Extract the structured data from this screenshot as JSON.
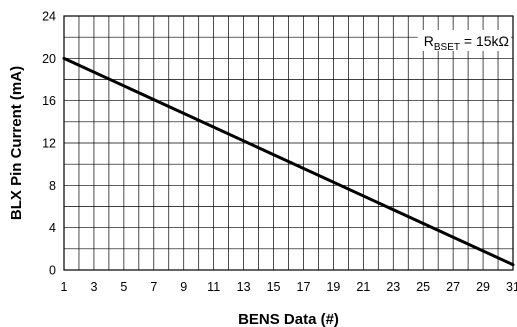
{
  "chart_data": {
    "type": "line",
    "xlabel": "BENS Data (#)",
    "ylabel": "BLX Pin Current (mA)",
    "xlim": [
      1,
      31
    ],
    "ylim": [
      0,
      24
    ],
    "x_ticks": [
      1,
      3,
      5,
      7,
      9,
      11,
      13,
      15,
      17,
      19,
      21,
      23,
      25,
      27,
      29,
      31
    ],
    "y_ticks": [
      0,
      4,
      8,
      12,
      16,
      20,
      24
    ],
    "grid": true,
    "x_minor_step": 1,
    "y_minor_step": 2,
    "annotation": {
      "prefix": "R",
      "subscript": "BSET",
      "suffix": " = 15kΩ"
    },
    "series": [
      {
        "color": "#000000",
        "x": [
          1,
          31
        ],
        "y": [
          20,
          0.5
        ]
      }
    ]
  }
}
